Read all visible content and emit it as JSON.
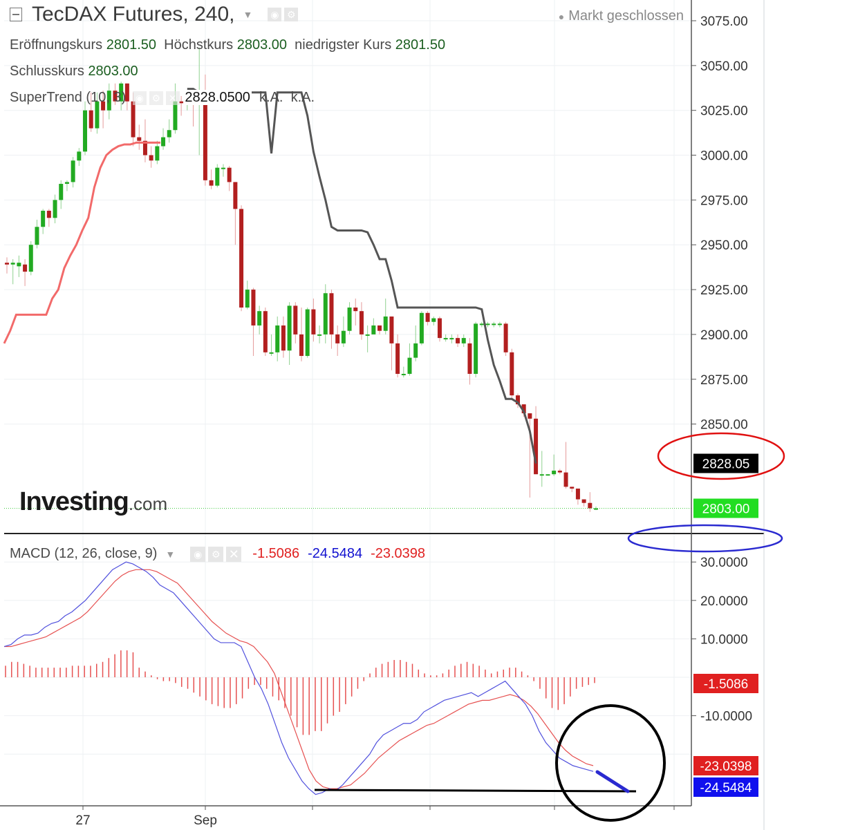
{
  "header": {
    "title": "TecDAX Futures, 240,",
    "status": "Markt geschlossen",
    "open_label": "Eröffnungskurs",
    "open_value": "2801.50",
    "high_label": "Höchstkurs",
    "high_value": "2803.00",
    "low_label": "niedrigster Kurs",
    "low_value": "2801.50",
    "close_label": "Schlusskurs",
    "close_value": "2803.00",
    "supertrend_label": "SuperTrend (10, 3)",
    "supertrend_value": "2828.0500",
    "supertrend_na1": "k.A.",
    "supertrend_na2": "k.A."
  },
  "macd_header": {
    "label": "MACD (12, 26, close, 9)",
    "v1": "-1.5086",
    "v2": "-24.5484",
    "v3": "-23.0398"
  },
  "logo": {
    "main": "Investing",
    "suffix": ".com"
  },
  "colors": {
    "up": "#22aa22",
    "down": "#b21f1f",
    "supertrend_up": "#f26a6a",
    "supertrend_down": "#555555",
    "macd_line": "#5050dd",
    "signal_line": "#e65050",
    "hist": "#e65050",
    "price_tag": "#22dd22",
    "supertrend_tag": "#000000"
  },
  "chart_data": [
    {
      "type": "candlestick",
      "title": "TecDAX Futures, 240,",
      "y_ticks": [
        "3075.00",
        "3050.00",
        "3025.00",
        "3000.00",
        "2975.00",
        "2950.00",
        "2925.00",
        "2900.00",
        "2875.00",
        "2850.00"
      ],
      "ylim": [
        2792,
        3082
      ],
      "x_ticks": [
        "27",
        "Sep"
      ],
      "price_tags": [
        {
          "label": "2828.05",
          "value": 2828.05,
          "kind": "supertrend"
        },
        {
          "label": "2803.00",
          "value": 2803.0,
          "kind": "last"
        }
      ],
      "candles": [
        [
          2940,
          2939,
          2943,
          2934
        ],
        [
          2939,
          2940,
          2942,
          2928
        ],
        [
          2938,
          2940,
          2944,
          2932
        ],
        [
          2939,
          2935,
          2942,
          2927
        ],
        [
          2935,
          2950,
          2952,
          2933
        ],
        [
          2950,
          2960,
          2964,
          2948
        ],
        [
          2960,
          2969,
          2970,
          2956
        ],
        [
          2969,
          2965,
          2970,
          2960
        ],
        [
          2965,
          2975,
          2978,
          2962
        ],
        [
          2975,
          2984,
          2986,
          2970
        ],
        [
          2984,
          2985,
          2986,
          2980
        ],
        [
          2985,
          2997,
          2999,
          2982
        ],
        [
          2997,
          3002,
          3004,
          2994
        ],
        [
          3002,
          3025,
          3030,
          3000
        ],
        [
          3025,
          3015,
          3035,
          3013
        ],
        [
          3015,
          3030,
          3035,
          3012
        ],
        [
          3030,
          3025,
          3036,
          3015
        ],
        [
          3025,
          3036,
          3040,
          3020
        ],
        [
          3036,
          3030,
          3040,
          3028
        ],
        [
          3030,
          3040,
          3041,
          3025
        ],
        [
          3040,
          3030,
          3040,
          3025
        ],
        [
          3030,
          3010,
          3035,
          3005
        ],
        [
          3010,
          3008,
          3017,
          3003
        ],
        [
          3008,
          3000,
          3020,
          2996
        ],
        [
          3000,
          2997,
          3005,
          2993
        ],
        [
          2997,
          3005,
          3008,
          2995
        ],
        [
          3005,
          3010,
          3015,
          3003
        ],
        [
          3010,
          3014,
          3020,
          3007
        ],
        [
          3014,
          3030,
          3040,
          3012
        ],
        [
          3030,
          3029,
          3033,
          3022
        ],
        [
          3029,
          3030,
          3033,
          3025
        ],
        [
          3030,
          3028,
          3035,
          3016
        ],
        [
          3028,
          3035,
          3060,
          3000
        ],
        [
          3035,
          2986,
          3045,
          2983
        ],
        [
          2986,
          2983,
          2992,
          2981
        ],
        [
          2983,
          2993,
          2995,
          2982
        ],
        [
          2993,
          2993,
          2995,
          2988
        ],
        [
          2993,
          2985,
          2994,
          2980
        ],
        [
          2985,
          2970,
          2985,
          2950
        ],
        [
          2970,
          2915,
          2972,
          2913
        ],
        [
          2915,
          2925,
          2930,
          2914
        ],
        [
          2925,
          2905,
          2926,
          2888
        ],
        [
          2905,
          2913,
          2916,
          2900
        ],
        [
          2913,
          2890,
          2915,
          2888
        ],
        [
          2890,
          2890,
          2900,
          2888
        ],
        [
          2890,
          2905,
          2910,
          2885
        ],
        [
          2905,
          2891,
          2910,
          2887
        ],
        [
          2891,
          2916,
          2918,
          2883
        ],
        [
          2916,
          2900,
          2918,
          2895
        ],
        [
          2900,
          2888,
          2915,
          2885
        ],
        [
          2888,
          2914,
          2915,
          2887
        ],
        [
          2914,
          2900,
          2920,
          2896
        ],
        [
          2900,
          2900,
          2905,
          2895
        ],
        [
          2900,
          2923,
          2928,
          2895
        ],
        [
          2923,
          2900,
          2925,
          2892
        ],
        [
          2900,
          2895,
          2905,
          2888
        ],
        [
          2895,
          2902,
          2910,
          2893
        ],
        [
          2902,
          2915,
          2918,
          2900
        ],
        [
          2915,
          2913,
          2920,
          2905
        ],
        [
          2913,
          2900,
          2918,
          2897
        ],
        [
          2900,
          2900,
          2905,
          2890
        ],
        [
          2900,
          2905,
          2909,
          2903
        ],
        [
          2905,
          2902,
          2905,
          2900
        ],
        [
          2902,
          2910,
          2920,
          2900
        ],
        [
          2910,
          2895,
          2910,
          2880
        ],
        [
          2895,
          2878,
          2900,
          2876
        ],
        [
          2878,
          2878,
          2882,
          2876
        ],
        [
          2878,
          2887,
          2895,
          2877
        ],
        [
          2887,
          2895,
          2905,
          2885
        ],
        [
          2895,
          2912,
          2913,
          2894
        ],
        [
          2912,
          2907,
          2913,
          2905
        ],
        [
          2907,
          2909,
          2910,
          2905
        ],
        [
          2909,
          2898,
          2910,
          2896
        ],
        [
          2898,
          2898,
          2900,
          2896
        ],
        [
          2898,
          2898,
          2900,
          2895
        ],
        [
          2898,
          2895,
          2900,
          2893
        ],
        [
          2895,
          2898,
          2900,
          2893
        ],
        [
          2895,
          2878,
          2898,
          2872
        ],
        [
          2878,
          2906,
          2907,
          2876
        ],
        [
          2906,
          2906,
          2907,
          2904
        ],
        [
          2906,
          2906,
          2907,
          2904
        ],
        [
          2906,
          2906,
          2907,
          2904
        ],
        [
          2906,
          2906,
          2907,
          2904
        ],
        [
          2906,
          2890,
          2907,
          2888
        ],
        [
          2890,
          2866,
          2892,
          2864
        ],
        [
          2866,
          2861,
          2867,
          2859
        ],
        [
          2861,
          2856,
          2861,
          2854
        ],
        [
          2856,
          2853,
          2856,
          2809
        ],
        [
          2853,
          2822,
          2860,
          2822
        ],
        [
          2822,
          2822,
          2835,
          2815
        ],
        [
          2822,
          2822,
          2822,
          2822
        ],
        [
          2822,
          2824,
          2833,
          2821
        ],
        [
          2824,
          2823,
          2825,
          2822
        ],
        [
          2823,
          2815,
          2840,
          2814
        ],
        [
          2815,
          2814,
          2815,
          2812
        ],
        [
          2814,
          2808,
          2808,
          2805
        ],
        [
          2808,
          2806,
          2808,
          2804
        ],
        [
          2806,
          2803,
          2812,
          2801
        ],
        [
          2803,
          2803,
          2804,
          2802
        ]
      ]
    },
    {
      "type": "line",
      "name": "SuperTrend (10, 3)",
      "up_segment": [
        2895,
        2902,
        2911,
        2911,
        2911,
        2911,
        2911,
        2911,
        2920,
        2925,
        2937,
        2944,
        2950,
        2958,
        2965,
        2982,
        2993,
        3000,
        3003,
        3005,
        3006,
        3006,
        3007,
        3007,
        3007,
        3007,
        3007
      ],
      "down_segment": [
        3037,
        3037,
        3035,
        3035,
        3035,
        3035,
        3035,
        3035,
        3035,
        3035,
        3035,
        3035,
        3035,
        3035,
        3001,
        3035,
        3035,
        3035,
        3035,
        3035,
        3022,
        3002,
        2988,
        2975,
        2960,
        2958,
        2958,
        2958,
        2958,
        2958,
        2957,
        2950,
        2942,
        2942,
        2930,
        2915,
        2915,
        2915,
        2915,
        2915,
        2915,
        2915,
        2915,
        2915,
        2915,
        2915,
        2915,
        2915,
        2915,
        2914,
        2897,
        2883,
        2874,
        2864,
        2864,
        2862,
        2857,
        2846,
        2828
      ]
    },
    {
      "type": "line",
      "title": "MACD (12, 26, close, 9)",
      "y_ticks": [
        "30.0000",
        "20.0000",
        "10.0000",
        "-10.0000"
      ],
      "ylim": [
        -33,
        34
      ],
      "value_tags": [
        {
          "label": "-1.5086",
          "value": -1.5086,
          "kind": "hist"
        },
        {
          "label": "-23.0398",
          "value": -23.0398,
          "kind": "signal"
        },
        {
          "label": "-24.5484",
          "value": -24.5484,
          "kind": "macd"
        }
      ],
      "macd": [
        8,
        8.5,
        10,
        11,
        11,
        11.5,
        13,
        14,
        14.5,
        16,
        17,
        18.5,
        20,
        22,
        24,
        26,
        28,
        29,
        30,
        29.5,
        28.5,
        27.5,
        26,
        24,
        23,
        22,
        20,
        18,
        16,
        14,
        12,
        10,
        9,
        9,
        9,
        8,
        4,
        0,
        -3,
        -7,
        -12,
        -17,
        -21,
        -24,
        -27,
        -29,
        -30.5,
        -30,
        -29,
        -29.5,
        -28,
        -26,
        -24,
        -22,
        -20,
        -17,
        -15,
        -14,
        -13,
        -12,
        -12,
        -11,
        -9,
        -8,
        -7,
        -6,
        -5.5,
        -5,
        -4.5,
        -4,
        -5,
        -4,
        -3,
        -2,
        -1,
        -3,
        -5,
        -7,
        -10,
        -14,
        -17,
        -19,
        -21,
        -22,
        -23,
        -23.5,
        -24,
        -24.5
      ],
      "signal": [
        8,
        8,
        8.5,
        9,
        9.5,
        10,
        10.5,
        11.5,
        12.5,
        13.5,
        14.5,
        15.5,
        17,
        19,
        21,
        23,
        25,
        26.5,
        27.5,
        28,
        28,
        28,
        27.5,
        26.5,
        25.5,
        24.5,
        22.5,
        20.5,
        18.5,
        16.5,
        14.5,
        13,
        11.5,
        10.5,
        9.5,
        9,
        8,
        6,
        4,
        1,
        -4,
        -9,
        -14,
        -19,
        -24,
        -27,
        -28.5,
        -29,
        -29,
        -28.5,
        -28,
        -26.5,
        -25,
        -23,
        -21,
        -19.5,
        -18,
        -16.5,
        -15.5,
        -14.5,
        -13.5,
        -12.5,
        -12,
        -11,
        -10,
        -9,
        -8,
        -7,
        -6.5,
        -6,
        -6,
        -5.5,
        -5,
        -4.5,
        -5,
        -6,
        -7.5,
        -9.5,
        -12,
        -14.5,
        -17,
        -19,
        -20.5,
        -21.5,
        -22.5,
        -23
      ],
      "histogram": [
        3,
        4,
        4,
        3.5,
        3,
        2.5,
        2.5,
        2.5,
        2.5,
        2.5,
        2.5,
        3,
        3,
        3,
        3,
        3.5,
        4,
        5,
        6,
        7,
        7,
        6.5,
        2.5,
        1.5,
        0.5,
        -0.5,
        -1,
        -1,
        -1.5,
        -2.5,
        -3,
        -4,
        -5,
        -6,
        -7,
        -7.5,
        -8,
        -8,
        -7,
        -5.5,
        -3,
        -2,
        -2,
        -3,
        -5,
        -6,
        -8,
        -10,
        -13,
        -15,
        -15,
        -14,
        -14,
        -12,
        -10,
        -9,
        -7,
        -5,
        -3,
        -1,
        1,
        2.5,
        3.5,
        4,
        4.5,
        4.5,
        4,
        3.5,
        2,
        1,
        0.5,
        0.5,
        1,
        2,
        3,
        3.5,
        4,
        3.5,
        3,
        2,
        1,
        1.5,
        2,
        2.5,
        2.5,
        1.5,
        0.5,
        -1,
        -3,
        -5.5,
        -8,
        -8.5,
        -7,
        -5,
        -3,
        -2.5,
        -2,
        -1.5
      ]
    }
  ]
}
